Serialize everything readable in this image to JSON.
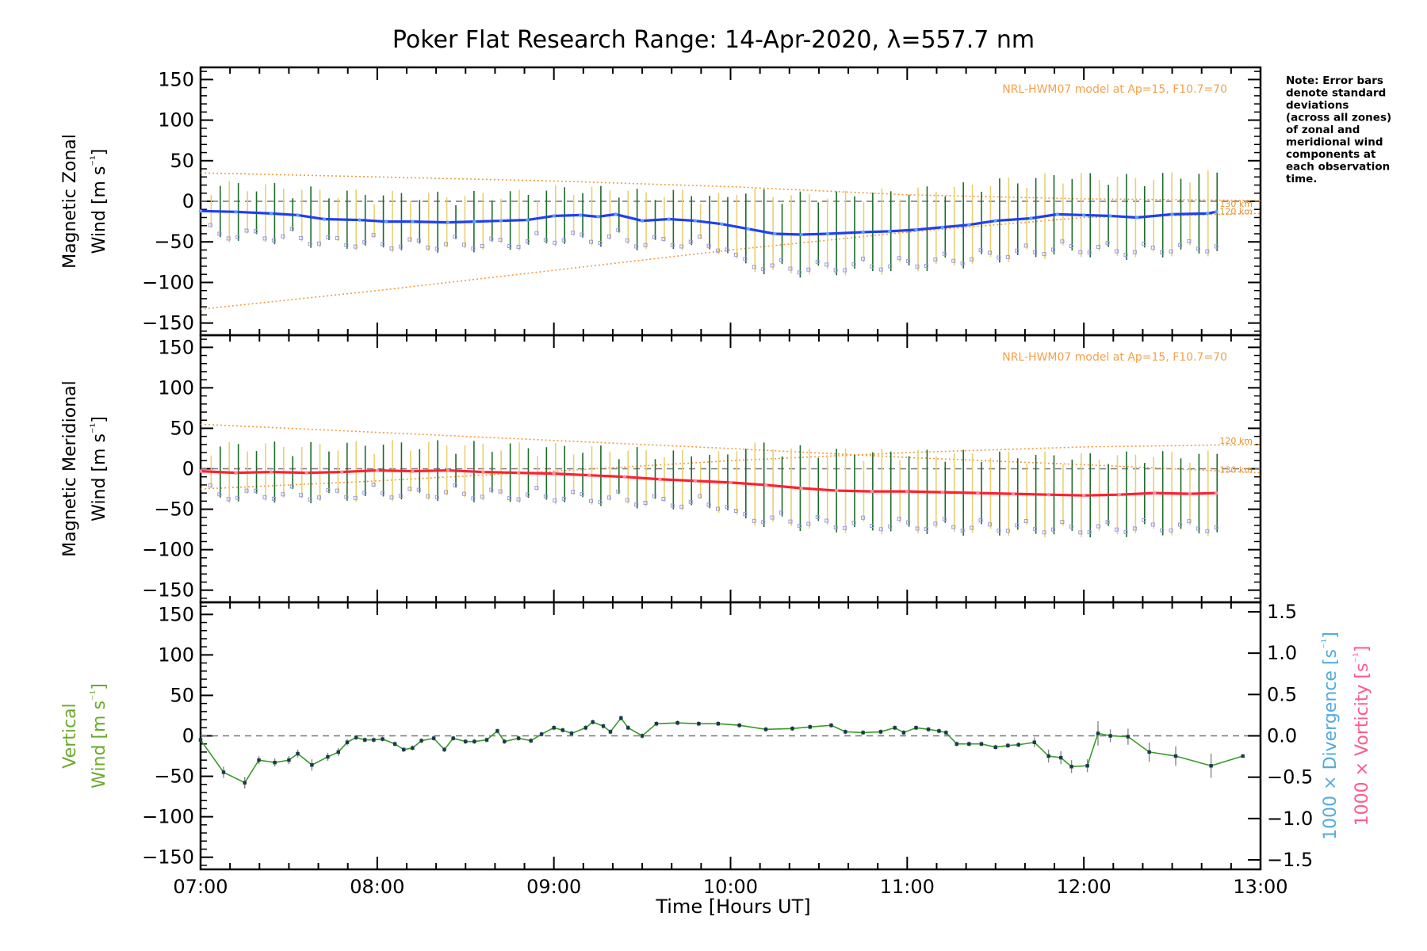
{
  "chart_data": [
    {
      "type": "line",
      "title": "Poker Flat Research Range: 14-Apr-2020, λ=557.7 nm",
      "ylabel": [
        "Magnetic Zonal",
        "Wind [m s⁻¹]"
      ],
      "ylim": [
        -165,
        165
      ],
      "yticks": [
        150,
        100,
        50,
        0,
        -50,
        -100,
        -150
      ],
      "xlim": [
        "07:00",
        "13:00"
      ],
      "zero_line": true,
      "model_label": "NRL-HWM07 model at Ap=15, F10.7=70",
      "model_altitudes": [
        "120 km",
        "130 km"
      ],
      "note": [
        "Note: Error bars",
        "denote standard",
        "deviations",
        "(across all zones)",
        "of zonal and",
        "meridional wind",
        "components at",
        "each observation",
        "time."
      ],
      "colors": {
        "mean": "#1f3ff0",
        "mean_markers": "#5fa0ff",
        "error": "#1e6b28",
        "zone_boxes": "#9a9ae0",
        "model": "#f39a3c"
      },
      "series": [
        {
          "name": "",
          "x": [
            "07:00",
            "07:12",
            "07:24",
            "07:33",
            "07:42",
            "07:54",
            "08:03",
            "08:12",
            "08:24",
            "08:33",
            "08:42",
            "08:51",
            "09:00",
            "09:09",
            "09:15",
            "09:21",
            "09:30",
            "09:39",
            "09:48",
            "09:57",
            "10:06",
            "10:15",
            "10:24",
            "10:33",
            "10:45",
            "10:54",
            "11:03",
            "11:12",
            "11:21",
            "11:30",
            "11:42",
            "11:51",
            "12:00",
            "12:09",
            "12:18",
            "12:30",
            "12:42",
            "12:45"
          ],
          "values": [
            -12,
            -13,
            -15,
            -17,
            -22,
            -23,
            -25,
            -25,
            -26,
            -25,
            -24,
            -23,
            -18,
            -17,
            -19,
            -16,
            -24,
            -22,
            -24,
            -28,
            -34,
            -40,
            -41,
            -40,
            -38,
            -37,
            -35,
            -32,
            -29,
            -24,
            -21,
            -16,
            -17,
            -18,
            -20,
            -16,
            -15,
            -13
          ]
        },
        {
          "name": "NRL-HWM07 120 km",
          "x": [
            "07:00",
            "08:00",
            "09:00",
            "10:00",
            "11:00",
            "12:00",
            "13:00"
          ],
          "values": [
            -133,
            -110,
            -85,
            -60,
            -38,
            -20,
            -15
          ]
        },
        {
          "name": "NRL-HWM07 130 km",
          "x": [
            "07:00",
            "08:00",
            "09:00",
            "10:00",
            "11:00",
            "12:00",
            "13:00"
          ],
          "values": [
            35,
            30,
            25,
            18,
            8,
            3,
            1
          ]
        }
      ]
    },
    {
      "type": "line",
      "ylabel": [
        "Magnetic Meridional",
        "Wind [m s⁻¹]"
      ],
      "ylim": [
        -165,
        165
      ],
      "yticks": [
        150,
        100,
        50,
        0,
        -50,
        -100,
        -150
      ],
      "xlim": [
        "07:00",
        "13:00"
      ],
      "zero_line": true,
      "model_label": "NRL-HWM07 model at Ap=15, F10.7=70",
      "model_altitudes": [
        "120 km",
        "130 km"
      ],
      "colors": {
        "mean": "#ff2030",
        "mean_markers": "#ff8aa0",
        "error": "#1e6b28",
        "zone_boxes": "#9a9ae0",
        "model": "#f39a3c"
      },
      "series": [
        {
          "name": "",
          "x": [
            "07:00",
            "07:12",
            "07:24",
            "07:36",
            "07:48",
            "08:00",
            "08:12",
            "08:24",
            "08:36",
            "08:48",
            "09:00",
            "09:12",
            "09:24",
            "09:36",
            "09:48",
            "10:00",
            "10:12",
            "10:24",
            "10:36",
            "10:48",
            "11:00",
            "11:12",
            "11:24",
            "11:36",
            "11:48",
            "12:00",
            "12:12",
            "12:24",
            "12:36",
            "12:45"
          ],
          "values": [
            -3,
            -5,
            -4,
            -5,
            -4,
            -2,
            -3,
            -2,
            -4,
            -5,
            -6,
            -8,
            -10,
            -13,
            -15,
            -17,
            -20,
            -24,
            -27,
            -28,
            -28,
            -29,
            -30,
            -31,
            -32,
            -33,
            -32,
            -30,
            -31,
            -30
          ]
        },
        {
          "name": "NRL-HWM07 120 km",
          "x": [
            "07:00",
            "08:00",
            "09:00",
            "10:00",
            "11:00",
            "12:00",
            "13:00"
          ],
          "values": [
            -25,
            -15,
            -3,
            10,
            20,
            27,
            30
          ]
        },
        {
          "name": "NRL-HWM07 130 km",
          "x": [
            "07:00",
            "08:00",
            "09:00",
            "10:00",
            "11:00",
            "12:00",
            "13:00"
          ],
          "values": [
            55,
            45,
            35,
            25,
            14,
            5,
            -5
          ]
        }
      ]
    },
    {
      "type": "line",
      "xlabel": "Time [Hours UT]",
      "ylabel": [
        "Vertical",
        "Wind [m s⁻¹]"
      ],
      "ylabel_color": "#6aaa2c",
      "ylim": [
        -165,
        165
      ],
      "yticks": [
        150,
        100,
        50,
        0,
        -50,
        -100,
        -150
      ],
      "xlim": [
        "07:00",
        "13:00"
      ],
      "xticks": [
        "07:00",
        "08:00",
        "09:00",
        "10:00",
        "11:00",
        "12:00",
        "13:00"
      ],
      "zero_line": true,
      "right_axis": {
        "ylim": [
          -1.5,
          1.5
        ],
        "yticks": [
          "1.5",
          "1.0",
          "0.5",
          "0.0",
          "−0.5",
          "−1.0",
          "−1.5"
        ],
        "labels": [
          {
            "text": "1000 × Divergence [s⁻¹]",
            "color": "#55aadd"
          },
          {
            "text": "1000 × Vorticity [s⁻¹]",
            "color": "#ff5a8a"
          }
        ]
      },
      "colors": {
        "line": "#3a9a2a",
        "marker": "#173a4a",
        "error": "#888888"
      },
      "series": [
        {
          "name": "",
          "x": [
            7.0,
            7.13,
            7.25,
            7.33,
            7.42,
            7.5,
            7.55,
            7.63,
            7.72,
            7.78,
            7.83,
            7.88,
            7.93,
            7.98,
            8.03,
            8.1,
            8.15,
            8.2,
            8.25,
            8.32,
            8.38,
            8.43,
            8.5,
            8.55,
            8.62,
            8.68,
            8.72,
            8.8,
            8.87,
            8.93,
            9.0,
            9.05,
            9.1,
            9.18,
            9.22,
            9.28,
            9.32,
            9.38,
            9.42,
            9.5,
            9.58,
            9.7,
            9.82,
            9.93,
            10.05,
            10.2,
            10.35,
            10.45,
            10.57,
            10.65,
            10.75,
            10.85,
            10.93,
            10.98,
            11.05,
            11.12,
            11.18,
            11.22,
            11.28,
            11.35,
            11.42,
            11.5,
            11.57,
            11.63,
            11.72,
            11.8,
            11.87,
            11.93,
            12.02,
            12.08,
            12.15,
            12.25,
            12.37,
            12.52,
            12.72,
            12.9
          ],
          "values": [
            -5,
            -45,
            -58,
            -30,
            -33,
            -30,
            -22,
            -36,
            -26,
            -20,
            -8,
            -2,
            -5,
            -5,
            -4,
            -10,
            -17,
            -15,
            -6,
            -3,
            -17,
            -3,
            -7,
            -7,
            -5,
            6,
            -7,
            -3,
            -6,
            2,
            10,
            7,
            3,
            10,
            17,
            12,
            5,
            22,
            10,
            0,
            15,
            16,
            15,
            15,
            13,
            8,
            9,
            11,
            13,
            5,
            4,
            5,
            10,
            4,
            10,
            8,
            6,
            4,
            -10,
            -10,
            -10,
            -14,
            -12,
            -11,
            -8,
            -25,
            -27,
            -38,
            -37,
            3,
            0,
            -1,
            -20,
            -25,
            -37,
            -25
          ],
          "errors": [
            0,
            7,
            7,
            5,
            5,
            5,
            5,
            7,
            5,
            5,
            4,
            3,
            3,
            3,
            3,
            3,
            3,
            3,
            3,
            3,
            3,
            3,
            3,
            3,
            3,
            3,
            3,
            3,
            3,
            3,
            3,
            3,
            3,
            3,
            3,
            3,
            3,
            3,
            3,
            3,
            3,
            3,
            3,
            3,
            3,
            3,
            3,
            3,
            3,
            3,
            3,
            3,
            3,
            3,
            3,
            3,
            3,
            3,
            3,
            3,
            3,
            3,
            3,
            3,
            6,
            8,
            8,
            8,
            8,
            15,
            8,
            10,
            12,
            12,
            15,
            0
          ]
        }
      ]
    }
  ]
}
